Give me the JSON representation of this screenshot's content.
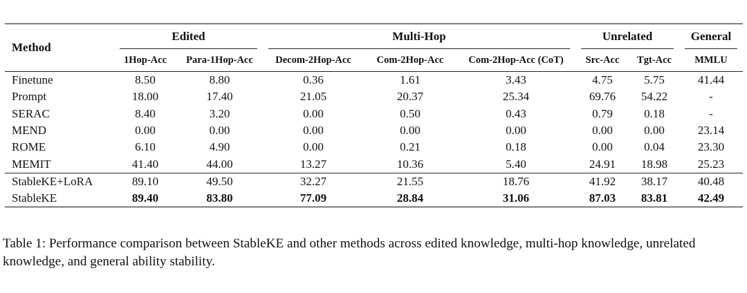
{
  "table": {
    "method_header": "Method",
    "groups": [
      {
        "label": "Edited",
        "span": 2
      },
      {
        "label": "Multi-Hop",
        "span": 3
      },
      {
        "label": "Unrelated",
        "span": 2
      },
      {
        "label": "General",
        "span": 1
      }
    ],
    "columns": [
      "1Hop-Acc",
      "Para-1Hop-Acc",
      "Decom-2Hop-Acc",
      "Com-2Hop-Acc",
      "Com-2Hop-Acc (CoT)",
      "Src-Acc",
      "Tgt-Acc",
      "MMLU"
    ],
    "baseline_rows": [
      {
        "method": "Finetune",
        "values": [
          "8.50",
          "8.80",
          "0.36",
          "1.61",
          "3.43",
          "4.75",
          "5.75",
          "41.44"
        ]
      },
      {
        "method": "Prompt",
        "values": [
          "18.00",
          "17.40",
          "21.05",
          "20.37",
          "25.34",
          "69.76",
          "54.22",
          "-"
        ]
      },
      {
        "method": "SERAC",
        "values": [
          "8.40",
          "3.20",
          "0.00",
          "0.50",
          "0.43",
          "0.79",
          "0.18",
          "-"
        ]
      },
      {
        "method": "MEND",
        "values": [
          "0.00",
          "0.00",
          "0.00",
          "0.00",
          "0.00",
          "0.00",
          "0.00",
          "23.14"
        ]
      },
      {
        "method": "ROME",
        "values": [
          "6.10",
          "4.90",
          "0.00",
          "0.21",
          "0.18",
          "0.00",
          "0.04",
          "23.30"
        ]
      },
      {
        "method": "MEMIT",
        "values": [
          "41.40",
          "44.00",
          "13.27",
          "10.36",
          "5.40",
          "24.91",
          "18.98",
          "25.23"
        ]
      }
    ],
    "proposed_rows": [
      {
        "method": "StableKE+LoRA",
        "values": [
          "89.10",
          "49.50",
          "32.27",
          "21.55",
          "18.76",
          "41.92",
          "38.17",
          "40.48"
        ],
        "bold": false
      },
      {
        "method": "StableKE",
        "values": [
          "89.40",
          "83.80",
          "77.09",
          "28.84",
          "31.06",
          "87.03",
          "83.81",
          "42.49"
        ],
        "bold": true
      }
    ]
  },
  "caption": "Table 1: Performance comparison between StableKE and other methods across edited knowledge, multi-hop knowledge, unrelated knowledge, and general ability stability."
}
